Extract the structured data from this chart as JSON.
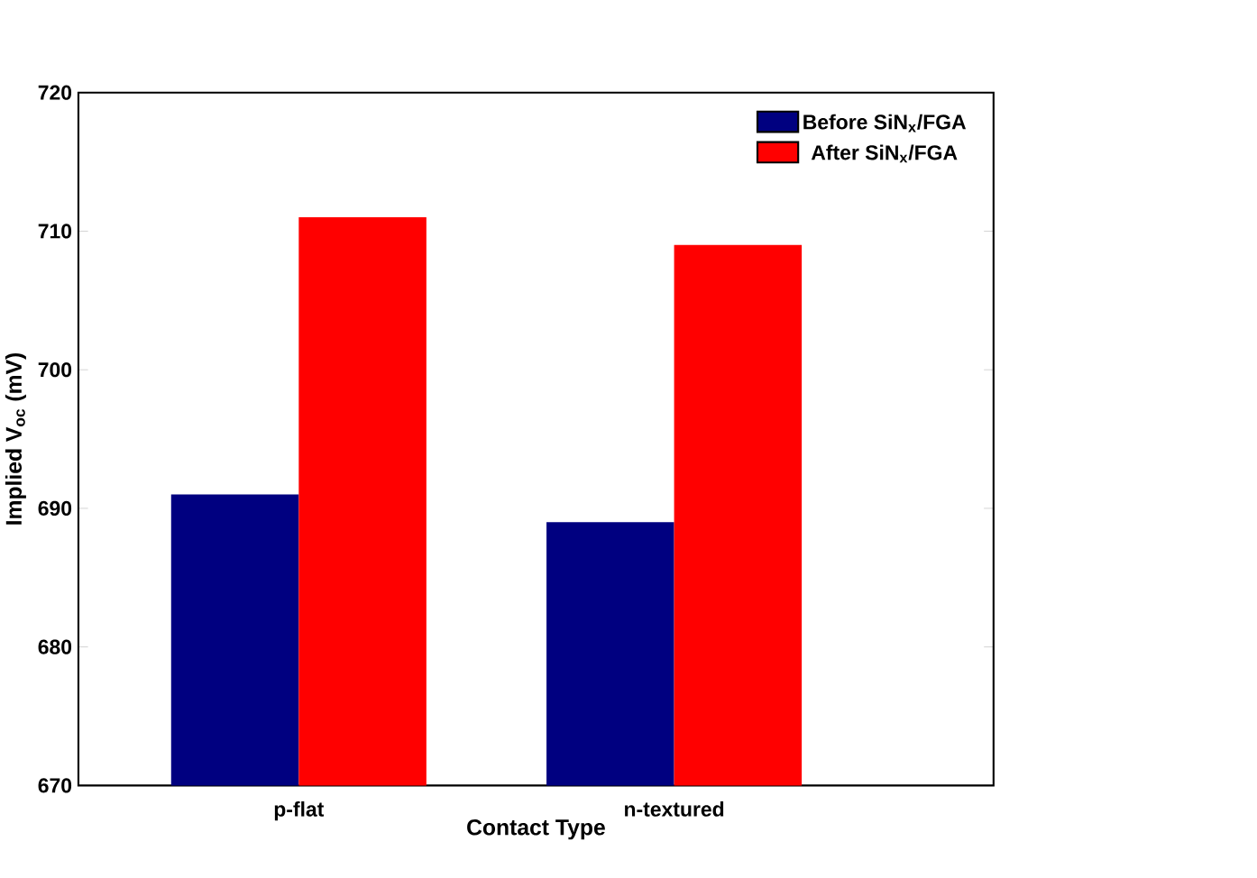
{
  "chart_data": {
    "type": "bar",
    "xlabel": "Contact Type",
    "ylabel": "Implied V$_{oc}$ (mV)",
    "categories": [
      "p-flat",
      "n-textured"
    ],
    "series": [
      {
        "name": "Before SiN$_{x}$/FGA",
        "color": "#000080",
        "values": [
          691,
          689
        ]
      },
      {
        "name": "After SiN$_{x}$/FGA",
        "color": "#ff0000",
        "values": [
          711,
          709
        ]
      }
    ],
    "ylim": [
      670,
      720
    ],
    "yticks": [
      670,
      680,
      690,
      700,
      710,
      720
    ],
    "legend": "top right"
  }
}
